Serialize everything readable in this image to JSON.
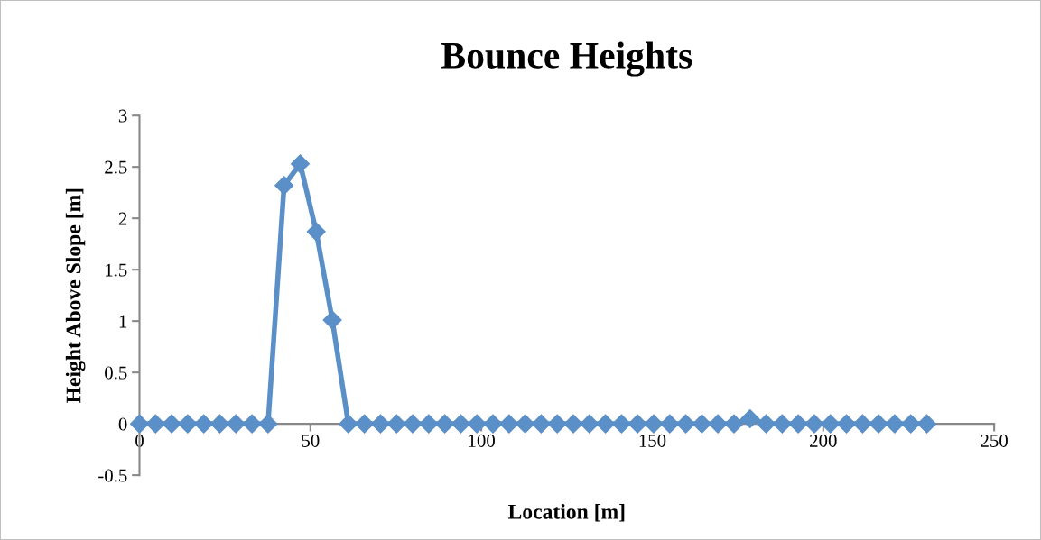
{
  "chart_data": {
    "type": "line",
    "title": "Bounce Heights",
    "xlabel": "Location [m]",
    "ylabel": "Height Above Slope [m]",
    "x": [
      0,
      4.7,
      9.4,
      14.1,
      18.8,
      23.5,
      28.2,
      32.9,
      37.6,
      42.3,
      47,
      51.7,
      56.4,
      61.1,
      65.8,
      70.5,
      75.2,
      79.9,
      84.6,
      89.3,
      94,
      98.7,
      103.4,
      108.1,
      112.8,
      117.5,
      122.2,
      126.9,
      131.6,
      136.3,
      141,
      145.7,
      150.4,
      155.1,
      159.8,
      164.5,
      169.2,
      173.9,
      178.6,
      183.3,
      188,
      192.7,
      197.4,
      202.1,
      206.8,
      211.5,
      216.2,
      220.9,
      225.6,
      230.3
    ],
    "series": [
      {
        "color": "#5b8fc7",
        "values": [
          0,
          0,
          0,
          0,
          0,
          0,
          0,
          0,
          0,
          2.32,
          2.53,
          1.87,
          1.01,
          0,
          0,
          0,
          0,
          0,
          0,
          0,
          0,
          0,
          0,
          0,
          0,
          0,
          0,
          0,
          0,
          0,
          0,
          0,
          0,
          0,
          0,
          0,
          0,
          0,
          0.05,
          0,
          0,
          0,
          0,
          0,
          0,
          0,
          0,
          0,
          0,
          0
        ]
      }
    ],
    "xlim": [
      0,
      250
    ],
    "xticks": [
      0,
      50,
      100,
      150,
      200,
      250
    ],
    "ylim": [
      -0.5,
      3
    ],
    "yticks": [
      -0.5,
      0,
      0.5,
      1,
      1.5,
      2,
      2.5,
      3
    ],
    "marker": "diamond",
    "line_style": "solid",
    "grid": false
  }
}
